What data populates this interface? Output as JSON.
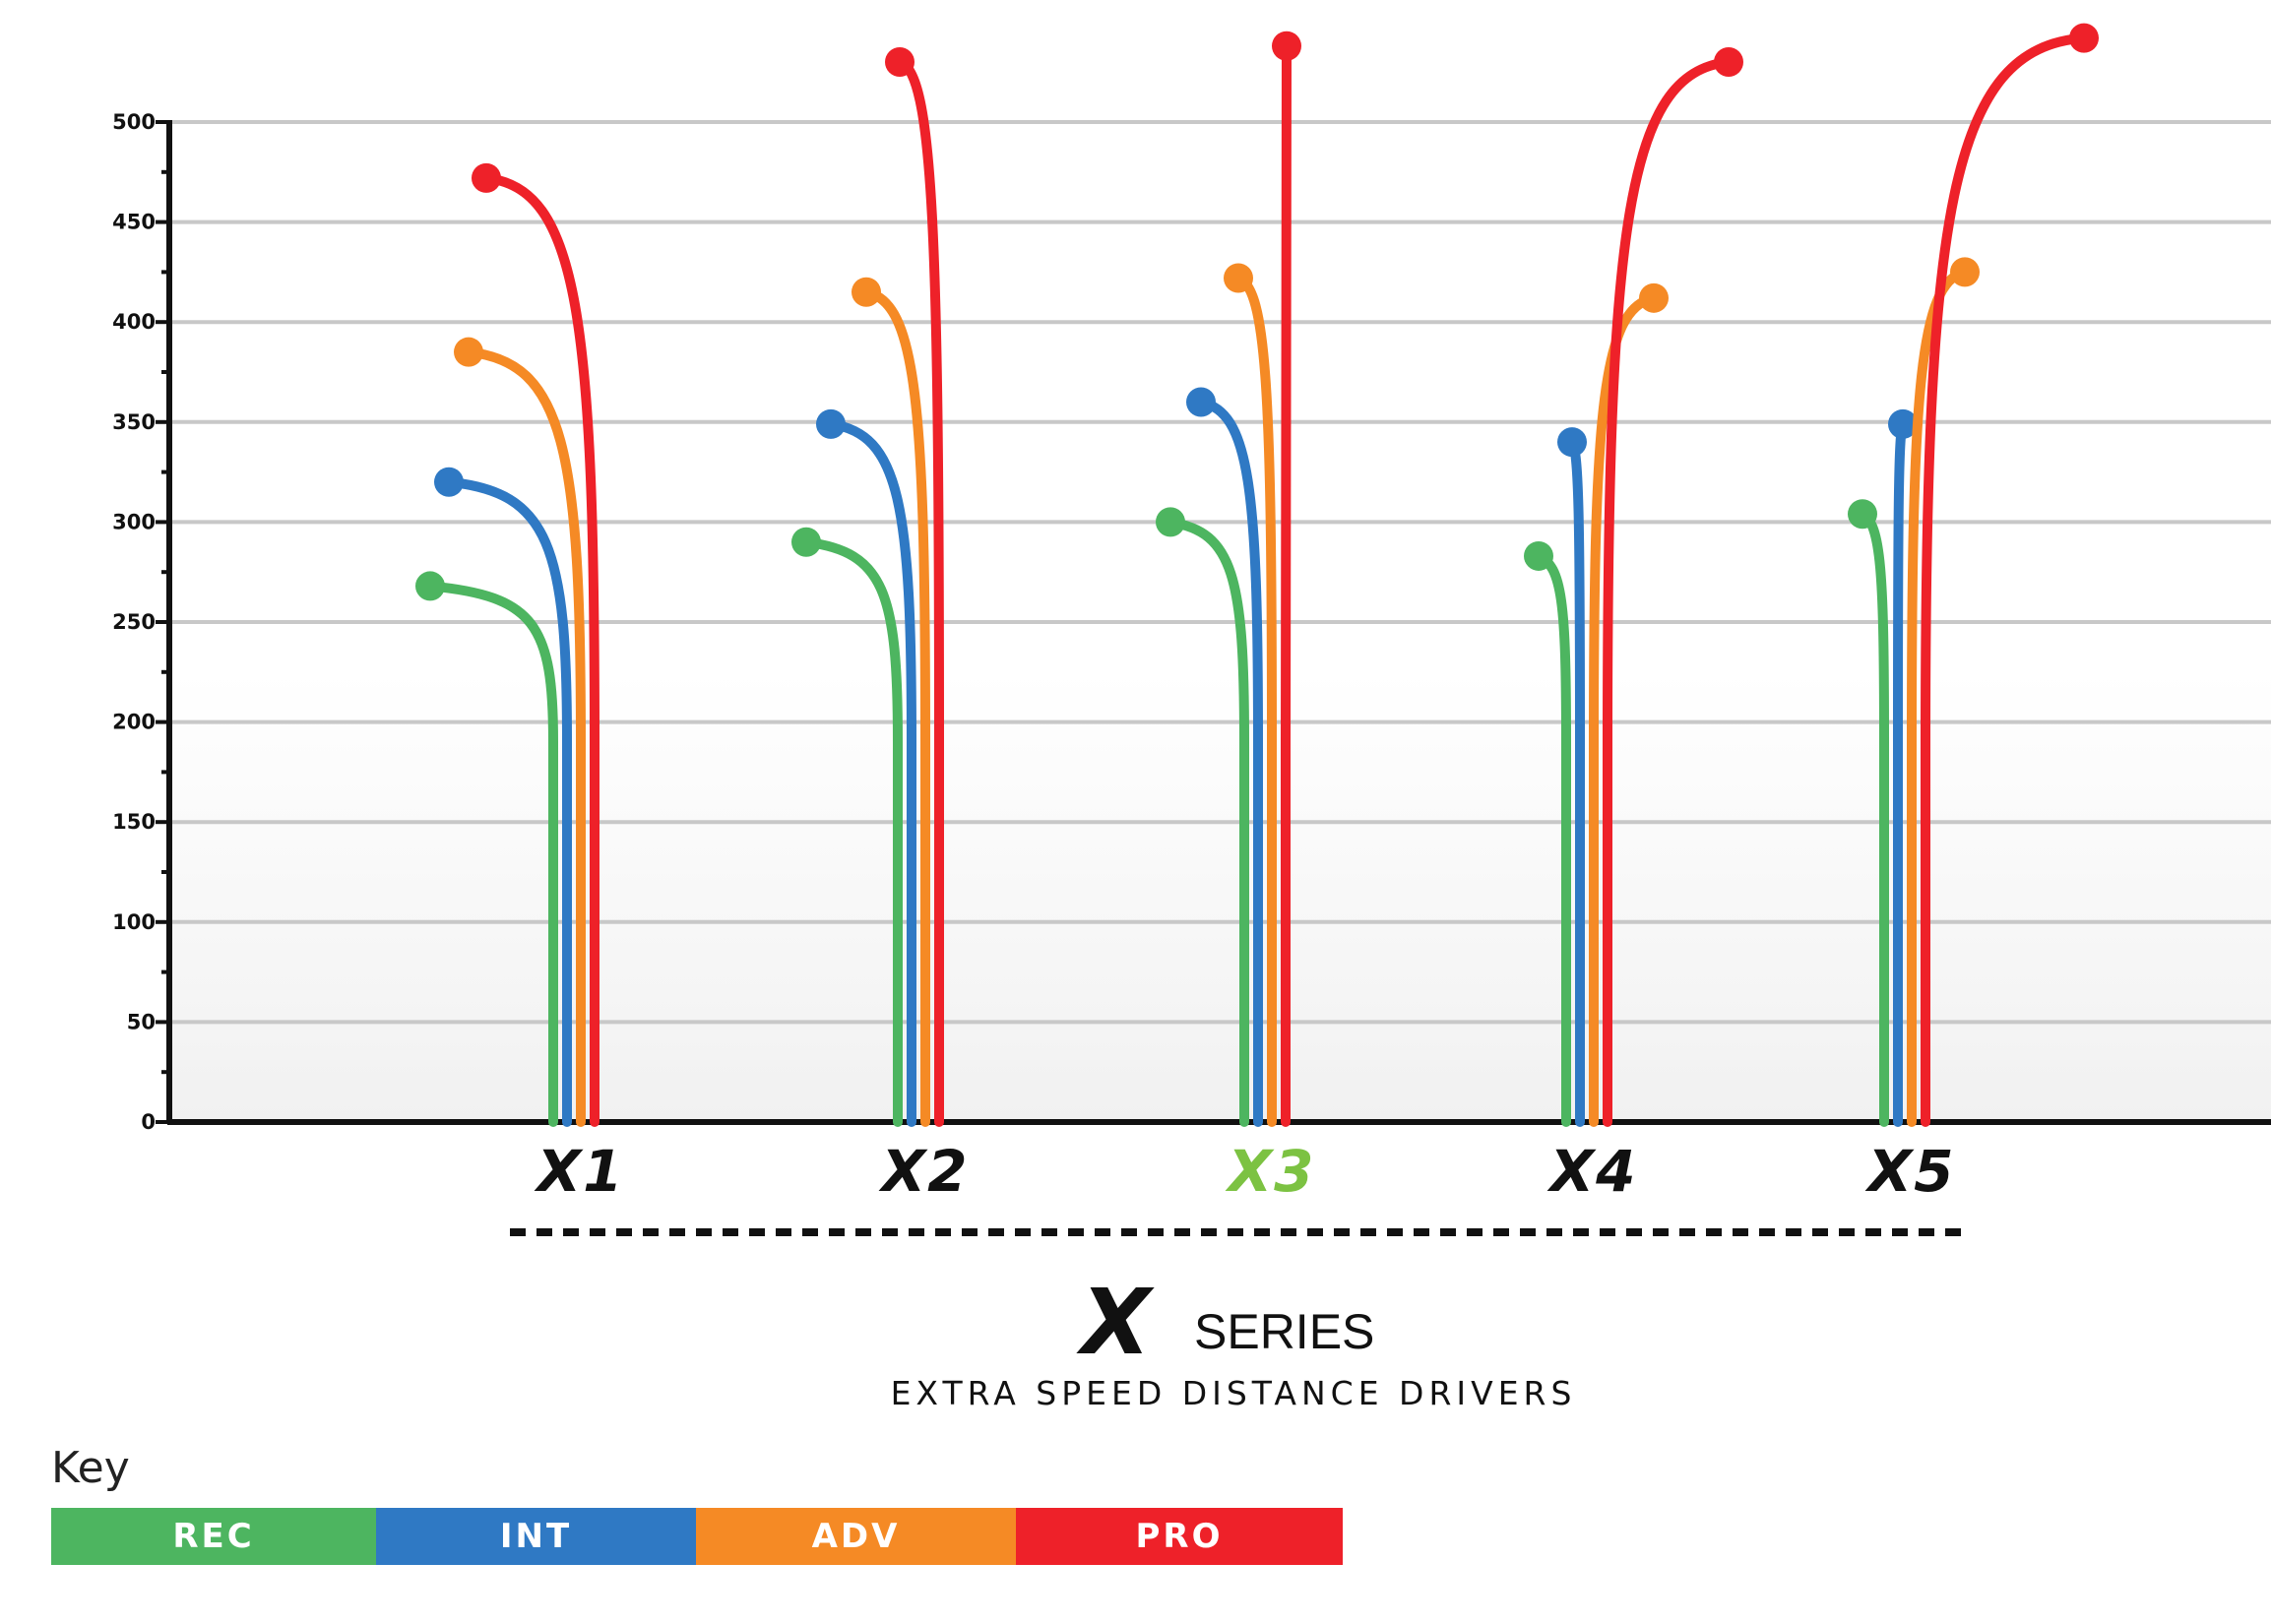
{
  "chart_data": {
    "type": "line",
    "y_ticks": [
      "0",
      "50",
      "100",
      "150",
      "200",
      "250",
      "300",
      "350",
      "400",
      "450",
      "500"
    ],
    "ylim": [
      0,
      500
    ],
    "grid": true,
    "discs": [
      {
        "name": "X1",
        "color": "#111111",
        "series": [
          {
            "level": "REC",
            "distance": 268,
            "end_offset": -125
          },
          {
            "level": "INT",
            "distance": 320,
            "end_offset": -120
          },
          {
            "level": "ADV",
            "distance": 385,
            "end_offset": -114
          },
          {
            "level": "PRO",
            "distance": 472,
            "end_offset": -110
          }
        ]
      },
      {
        "name": "X2",
        "color": "#111111",
        "series": [
          {
            "level": "REC",
            "distance": 290,
            "end_offset": -93
          },
          {
            "level": "INT",
            "distance": 349,
            "end_offset": -82
          },
          {
            "level": "ADV",
            "distance": 415,
            "end_offset": -60
          },
          {
            "level": "PRO",
            "distance": 530,
            "end_offset": -40
          }
        ]
      },
      {
        "name": "X3",
        "color": "#7CC242",
        "series": [
          {
            "level": "REC",
            "distance": 300,
            "end_offset": -75
          },
          {
            "level": "INT",
            "distance": 360,
            "end_offset": -58
          },
          {
            "level": "ADV",
            "distance": 422,
            "end_offset": -34
          },
          {
            "level": "PRO",
            "distance": 538,
            "end_offset": 1
          }
        ]
      },
      {
        "name": "X4",
        "color": "#111111",
        "series": [
          {
            "level": "REC",
            "distance": 283,
            "end_offset": -28
          },
          {
            "level": "INT",
            "distance": 340,
            "end_offset": -8
          },
          {
            "level": "ADV",
            "distance": 412,
            "end_offset": 61
          },
          {
            "level": "PRO",
            "distance": 530,
            "end_offset": 123
          }
        ]
      },
      {
        "name": "X5",
        "color": "#111111",
        "series": [
          {
            "level": "REC",
            "distance": 304,
            "end_offset": -22
          },
          {
            "level": "INT",
            "distance": 349,
            "end_offset": 5
          },
          {
            "level": "ADV",
            "distance": 425,
            "end_offset": 54
          },
          {
            "level": "PRO",
            "distance": 542,
            "end_offset": 161
          }
        ]
      }
    ]
  },
  "colors": {
    "REC": "#4DB560",
    "INT": "#2F79C4",
    "ADV": "#F58A25",
    "PRO": "#EE2129"
  },
  "brand": {
    "mark": "X",
    "series_word": "SERIES",
    "subtitle": "EXTRA SPEED DISTANCE DRIVERS"
  },
  "key": {
    "title": "Key",
    "items": [
      {
        "label": "REC",
        "color": "#4DB560"
      },
      {
        "label": "INT",
        "color": "#2F79C4"
      },
      {
        "label": "ADV",
        "color": "#F58A25"
      },
      {
        "label": "PRO",
        "color": "#EE2129"
      }
    ]
  }
}
